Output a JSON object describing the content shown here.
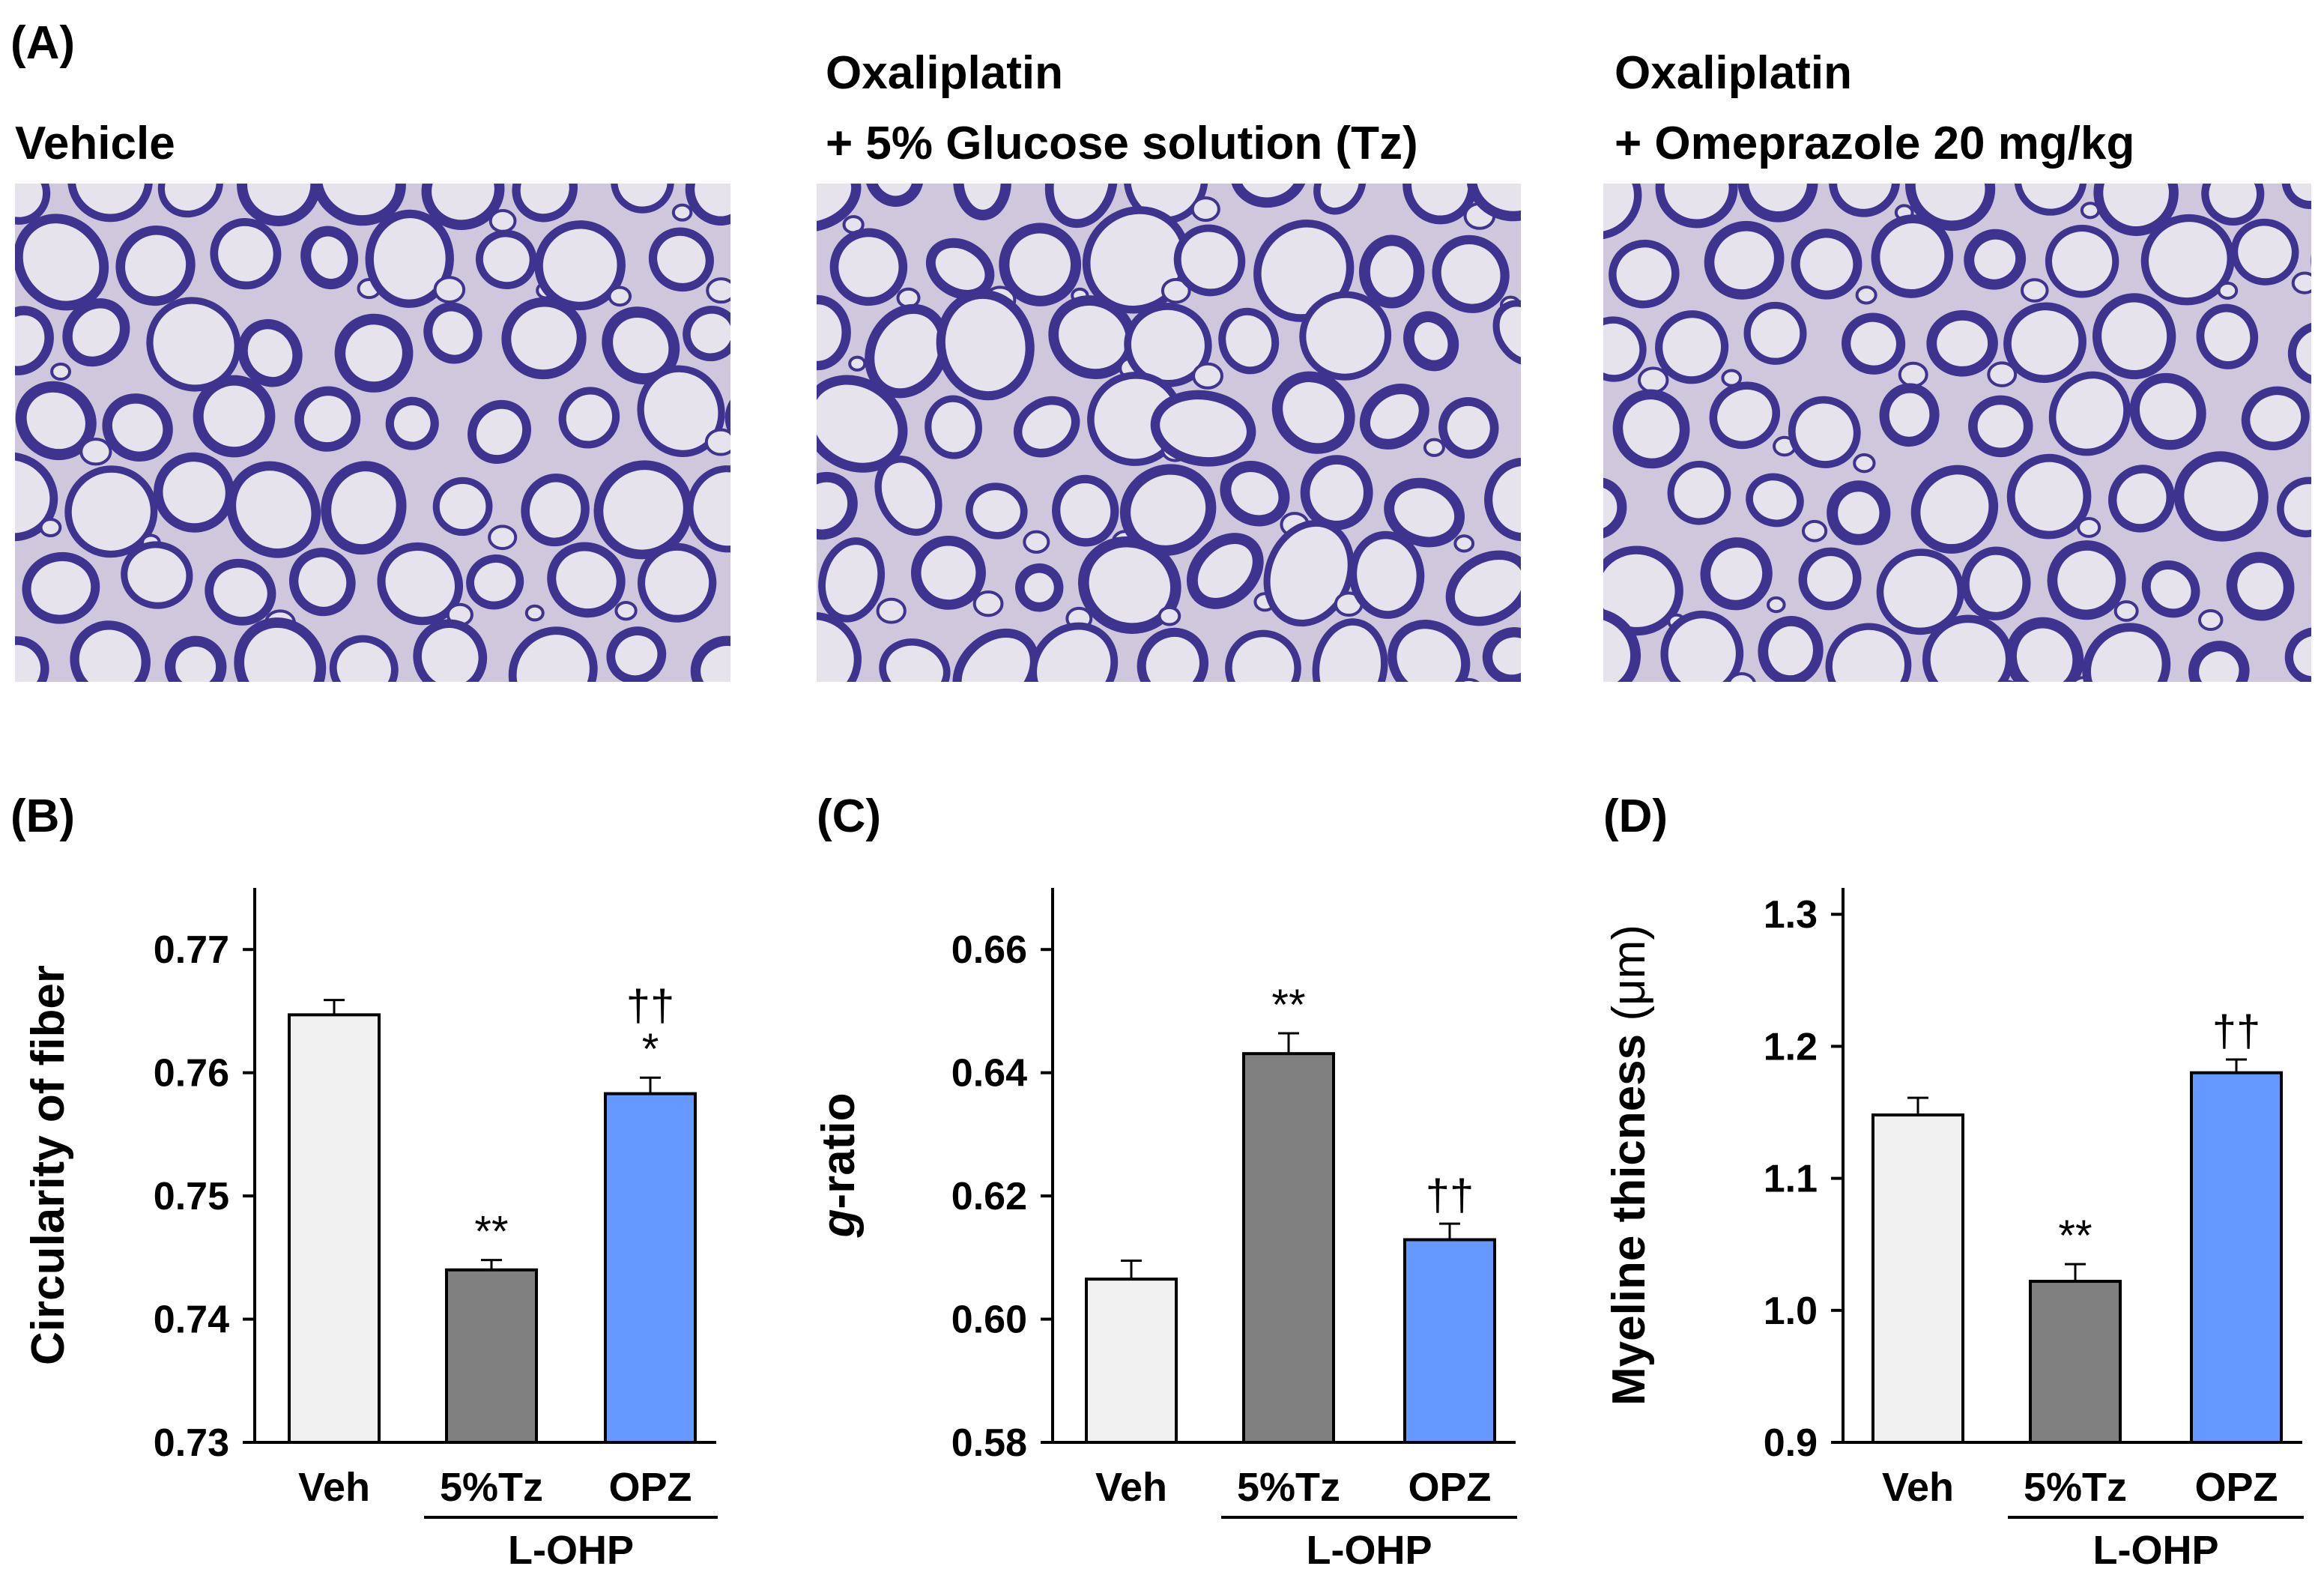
{
  "panel_a": {
    "label": "(A)",
    "images": [
      {
        "title_lines": [
          "Vehicle"
        ],
        "image_name": "vehicle-nerve-micrograph"
      },
      {
        "title_lines": [
          "Oxaliplatin",
          "+ 5% Glucose solution (Tz)"
        ],
        "image_name": "oxaliplatin-tz-nerve-micrograph"
      },
      {
        "title_lines": [
          "Oxaliplatin",
          "+ Omeprazole 20 mg/kg"
        ],
        "image_name": "oxaliplatin-omeprazole-nerve-micrograph"
      }
    ]
  },
  "colors": {
    "veh_bar": "#f0f0f0",
    "tz_bar": "#808080",
    "opz_bar": "#6699ff",
    "micro_bg": "#cfc7dc",
    "micro_ring": "#3e338f",
    "micro_inner": "#e7e3ec"
  },
  "chart_data": [
    {
      "panel": "(B)",
      "type": "bar",
      "ylabel": "Circularity of fiber",
      "ylabel_parts": [
        "Circularity of fiber"
      ],
      "ylim": [
        0.73,
        0.775
      ],
      "yticks": [
        "0.73",
        "0.74",
        "0.75",
        "0.76",
        "0.77"
      ],
      "ytick_values": [
        0.73,
        0.74,
        0.75,
        0.76,
        0.77
      ],
      "categories": [
        "Veh",
        "5%Tz",
        "OPZ"
      ],
      "group_label": "L-OHP",
      "values": [
        0.7647,
        0.744,
        0.7583
      ],
      "errors": [
        0.0012,
        0.0008,
        0.0013
      ],
      "annotations": [
        [],
        [
          "**"
        ],
        [
          "*",
          "††"
        ]
      ],
      "series_colors": [
        "#f0f0f0",
        "#808080",
        "#6699ff"
      ]
    },
    {
      "panel": "(C)",
      "type": "bar",
      "ylabel": "g-ratio",
      "ylabel_parts": [
        "g",
        "-ratio"
      ],
      "ylim": [
        0.58,
        0.67
      ],
      "yticks": [
        "0.58",
        "0.60",
        "0.62",
        "0.64",
        "0.66"
      ],
      "ytick_values": [
        0.58,
        0.6,
        0.62,
        0.64,
        0.66
      ],
      "categories": [
        "Veh",
        "5%Tz",
        "OPZ"
      ],
      "group_label": "L-OHP",
      "values": [
        0.6065,
        0.6431,
        0.6129
      ],
      "errors": [
        0.003,
        0.0033,
        0.0026
      ],
      "annotations": [
        [],
        [
          "**"
        ],
        [
          "††"
        ]
      ],
      "series_colors": [
        "#f0f0f0",
        "#808080",
        "#6699ff"
      ]
    },
    {
      "panel": "(D)",
      "type": "bar",
      "ylabel": "Myeline thicness (μm)",
      "ylabel_parts": [
        "Myeline thicness",
        " (μm)"
      ],
      "ylim": [
        0.9,
        1.32
      ],
      "yticks": [
        "0.9",
        "1.0",
        "1.1",
        "1.2",
        "1.3"
      ],
      "ytick_values": [
        0.9,
        1.0,
        1.1,
        1.2,
        1.3
      ],
      "categories": [
        "Veh",
        "5%Tz",
        "OPZ"
      ],
      "group_label": "L-OHP",
      "values": [
        1.148,
        1.022,
        1.18
      ],
      "errors": [
        0.013,
        0.013,
        0.01
      ],
      "annotations": [
        [],
        [
          "**"
        ],
        [
          "††"
        ]
      ],
      "series_colors": [
        "#f0f0f0",
        "#808080",
        "#6699ff"
      ]
    }
  ]
}
